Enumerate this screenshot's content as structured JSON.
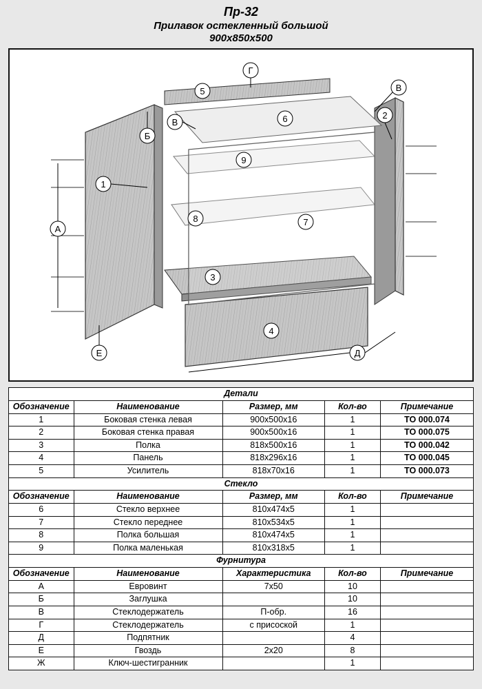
{
  "header": {
    "code": "Пр-32",
    "name": "Прилавок остекленный большой",
    "dims": "900х850х500"
  },
  "sections": {
    "details": {
      "title": "Детали",
      "head": [
        "Обозначение",
        "Наименование",
        "Размер, мм",
        "Кол-во",
        "Примечание"
      ],
      "rows": [
        [
          "1",
          "Боковая стенка левая",
          "900х500х16",
          "1",
          "ТО 000.074"
        ],
        [
          "2",
          "Боковая стенка правая",
          "900х500х16",
          "1",
          "ТО 000.075"
        ],
        [
          "3",
          "Полка",
          "818х500х16",
          "1",
          "ТО 000.042"
        ],
        [
          "4",
          "Панель",
          "818х296х16",
          "1",
          "ТО 000.045"
        ],
        [
          "5",
          "Усилитель",
          "818х70х16",
          "1",
          "ТО 000.073"
        ]
      ]
    },
    "glass": {
      "title": "Стекло",
      "head": [
        "Обозначение",
        "Наименование",
        "Размер, мм",
        "Кол-во",
        "Примечание"
      ],
      "rows": [
        [
          "6",
          "Стекло верхнее",
          "810х474х5",
          "1",
          ""
        ],
        [
          "7",
          "Стекло переднее",
          "810х534х5",
          "1",
          ""
        ],
        [
          "8",
          "Полка большая",
          "810х474х5",
          "1",
          ""
        ],
        [
          "9",
          "Полка маленькая",
          "810х318х5",
          "1",
          ""
        ]
      ]
    },
    "hardware": {
      "title": "Фурнитура",
      "head": [
        "Обозначение",
        "Наименование",
        "Характеристика",
        "Кол-во",
        "Примечание"
      ],
      "rows": [
        [
          "А",
          "Евровинт",
          "7х50",
          "10",
          ""
        ],
        [
          "Б",
          "Заглушка",
          "",
          "10",
          ""
        ],
        [
          "В",
          "Стеклодержатель",
          "П-обр.",
          "16",
          ""
        ],
        [
          "Г",
          "Стеклодержатель",
          "с присоской",
          "1",
          ""
        ],
        [
          "Д",
          "Подпятник",
          "",
          "4",
          ""
        ],
        [
          "Е",
          "Гвоздь",
          "2х20",
          "8",
          ""
        ],
        [
          "Ж",
          "Ключ-шестигранник",
          "",
          "1",
          ""
        ]
      ]
    }
  },
  "diagram": {
    "wood_fill": "#bfbfbf",
    "wood_stroke": "#333",
    "glass_fill": "#f4f4f4",
    "glass_stroke": "#666",
    "callouts": [
      "1",
      "2",
      "3",
      "4",
      "5",
      "6",
      "7",
      "8",
      "9",
      "А",
      "Б",
      "В",
      "Г",
      "Д",
      "Е"
    ]
  }
}
